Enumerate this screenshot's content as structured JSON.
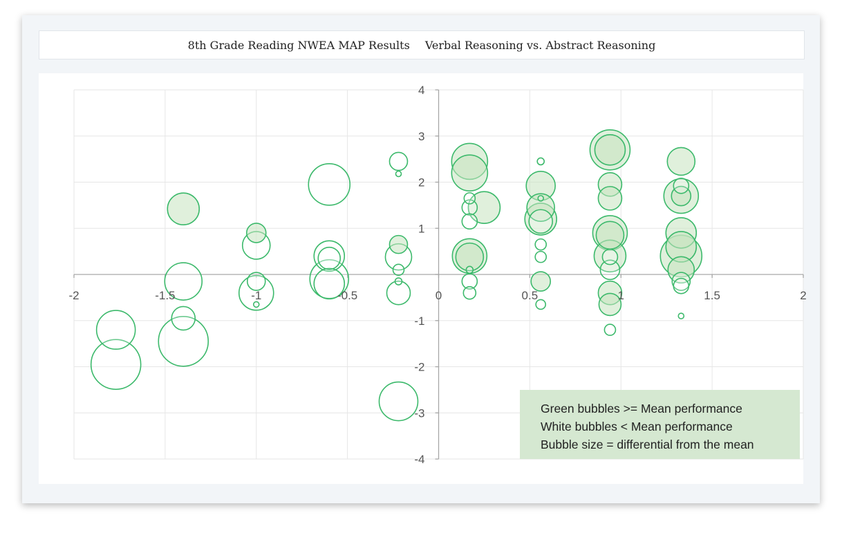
{
  "chart_data": {
    "type": "scatter",
    "title": "8th Grade Reading NWEA MAP Results",
    "subtitle": "Verbal Reasoning vs. Abstract Reasoning",
    "xlim": [
      -2,
      2
    ],
    "ylim": [
      -4,
      4
    ],
    "x_ticks": [
      "-2",
      "-1.5",
      "-1",
      "-0.5",
      "0",
      "0.5",
      "1",
      "1.5",
      "2"
    ],
    "y_ticks": [
      "-4",
      "-3",
      "-2",
      "-1",
      "0",
      "1",
      "2",
      "3",
      "4"
    ],
    "grid": true,
    "legend_notes": [
      "Green bubbles >= Mean performance",
      "White bubbles < Mean performance",
      "Bubble size = differential from the mean"
    ],
    "colors": {
      "bubble_stroke": "#3cb96b",
      "bubble_green_fill": "#c6e4c0",
      "bubble_white_fill": "#ffffff",
      "grid": "#e6e6e6",
      "axis": "#a6a6a6",
      "note_box": "#d5e8d1"
    },
    "bubble_size_meaning": "differential from the mean",
    "points": [
      {
        "x": -1.77,
        "y": -1.2,
        "size": 28,
        "fill": "white"
      },
      {
        "x": -1.77,
        "y": -1.95,
        "size": 36,
        "fill": "white"
      },
      {
        "x": -1.4,
        "y": 1.42,
        "size": 23,
        "fill": "green"
      },
      {
        "x": -1.4,
        "y": -0.15,
        "size": 27,
        "fill": "white"
      },
      {
        "x": -1.4,
        "y": -0.95,
        "size": 17,
        "fill": "white"
      },
      {
        "x": -1.4,
        "y": -1.45,
        "size": 36,
        "fill": "white"
      },
      {
        "x": -1.0,
        "y": 0.9,
        "size": 14,
        "fill": "green"
      },
      {
        "x": -1.0,
        "y": 0.63,
        "size": 20,
        "fill": "white"
      },
      {
        "x": -1.0,
        "y": -0.15,
        "size": 13,
        "fill": "white"
      },
      {
        "x": -1.0,
        "y": -0.4,
        "size": 25,
        "fill": "white"
      },
      {
        "x": -1.0,
        "y": -0.65,
        "size": 4,
        "fill": "white"
      },
      {
        "x": -0.6,
        "y": 1.95,
        "size": 30,
        "fill": "white"
      },
      {
        "x": -0.6,
        "y": 0.4,
        "size": 22,
        "fill": "white"
      },
      {
        "x": -0.6,
        "y": 0.35,
        "size": 16,
        "fill": "white"
      },
      {
        "x": -0.6,
        "y": -0.1,
        "size": 28,
        "fill": "white"
      },
      {
        "x": -0.6,
        "y": -0.2,
        "size": 22,
        "fill": "white"
      },
      {
        "x": -0.22,
        "y": 2.45,
        "size": 13,
        "fill": "white"
      },
      {
        "x": -0.22,
        "y": 2.18,
        "size": 4,
        "fill": "white"
      },
      {
        "x": -0.22,
        "y": 0.65,
        "size": 13,
        "fill": "green"
      },
      {
        "x": -0.22,
        "y": 0.38,
        "size": 19,
        "fill": "white"
      },
      {
        "x": -0.22,
        "y": 0.1,
        "size": 8,
        "fill": "white"
      },
      {
        "x": -0.22,
        "y": -0.15,
        "size": 5,
        "fill": "white"
      },
      {
        "x": -0.22,
        "y": -0.4,
        "size": 17,
        "fill": "white"
      },
      {
        "x": -0.22,
        "y": -2.75,
        "size": 28,
        "fill": "white"
      },
      {
        "x": 0.17,
        "y": 2.45,
        "size": 26,
        "fill": "green"
      },
      {
        "x": 0.17,
        "y": 2.2,
        "size": 26,
        "fill": "green"
      },
      {
        "x": 0.17,
        "y": 1.65,
        "size": 8,
        "fill": "white"
      },
      {
        "x": 0.17,
        "y": 1.45,
        "size": 11,
        "fill": "white"
      },
      {
        "x": 0.17,
        "y": 1.15,
        "size": 11,
        "fill": "white"
      },
      {
        "x": 0.25,
        "y": 1.45,
        "size": 23,
        "fill": "green"
      },
      {
        "x": 0.17,
        "y": 0.4,
        "size": 25,
        "fill": "green"
      },
      {
        "x": 0.17,
        "y": 0.38,
        "size": 20,
        "fill": "green"
      },
      {
        "x": 0.17,
        "y": 0.1,
        "size": 5,
        "fill": "white"
      },
      {
        "x": 0.17,
        "y": -0.15,
        "size": 11,
        "fill": "white"
      },
      {
        "x": 0.17,
        "y": -0.4,
        "size": 9,
        "fill": "white"
      },
      {
        "x": 0.56,
        "y": 2.45,
        "size": 5,
        "fill": "white"
      },
      {
        "x": 0.56,
        "y": 1.92,
        "size": 21,
        "fill": "green"
      },
      {
        "x": 0.56,
        "y": 1.65,
        "size": 4,
        "fill": "white"
      },
      {
        "x": 0.56,
        "y": 1.45,
        "size": 20,
        "fill": "green"
      },
      {
        "x": 0.56,
        "y": 1.2,
        "size": 23,
        "fill": "green"
      },
      {
        "x": 0.56,
        "y": 1.15,
        "size": 17,
        "fill": "white"
      },
      {
        "x": 0.56,
        "y": 0.65,
        "size": 8,
        "fill": "white"
      },
      {
        "x": 0.56,
        "y": 0.38,
        "size": 8,
        "fill": "white"
      },
      {
        "x": 0.56,
        "y": -0.15,
        "size": 14,
        "fill": "green"
      },
      {
        "x": 0.56,
        "y": -0.65,
        "size": 7,
        "fill": "white"
      },
      {
        "x": 0.94,
        "y": 2.7,
        "size": 29,
        "fill": "green"
      },
      {
        "x": 0.94,
        "y": 2.7,
        "size": 22,
        "fill": "green"
      },
      {
        "x": 0.94,
        "y": 1.95,
        "size": 17,
        "fill": "green"
      },
      {
        "x": 0.94,
        "y": 1.65,
        "size": 17,
        "fill": "green"
      },
      {
        "x": 0.94,
        "y": 0.9,
        "size": 25,
        "fill": "green"
      },
      {
        "x": 0.94,
        "y": 0.85,
        "size": 20,
        "fill": "green"
      },
      {
        "x": 0.94,
        "y": 0.4,
        "size": 23,
        "fill": "green"
      },
      {
        "x": 0.94,
        "y": 0.38,
        "size": 11,
        "fill": "white"
      },
      {
        "x": 0.94,
        "y": 0.1,
        "size": 14,
        "fill": "white"
      },
      {
        "x": 0.94,
        "y": -0.4,
        "size": 17,
        "fill": "green"
      },
      {
        "x": 0.94,
        "y": -0.65,
        "size": 16,
        "fill": "green"
      },
      {
        "x": 0.94,
        "y": -1.2,
        "size": 8,
        "fill": "white"
      },
      {
        "x": 1.33,
        "y": 2.45,
        "size": 20,
        "fill": "green"
      },
      {
        "x": 1.33,
        "y": 1.92,
        "size": 11,
        "fill": "white"
      },
      {
        "x": 1.33,
        "y": 1.7,
        "size": 25,
        "fill": "green"
      },
      {
        "x": 1.33,
        "y": 1.7,
        "size": 14,
        "fill": "green"
      },
      {
        "x": 1.33,
        "y": 0.9,
        "size": 22,
        "fill": "green"
      },
      {
        "x": 1.33,
        "y": 0.6,
        "size": 22,
        "fill": "green"
      },
      {
        "x": 1.33,
        "y": 0.4,
        "size": 30,
        "fill": "green"
      },
      {
        "x": 1.33,
        "y": 0.1,
        "size": 19,
        "fill": "green"
      },
      {
        "x": 1.33,
        "y": -0.15,
        "size": 13,
        "fill": "white"
      },
      {
        "x": 1.33,
        "y": -0.25,
        "size": 11,
        "fill": "white"
      },
      {
        "x": 1.33,
        "y": -0.9,
        "size": 4,
        "fill": "white"
      }
    ]
  }
}
